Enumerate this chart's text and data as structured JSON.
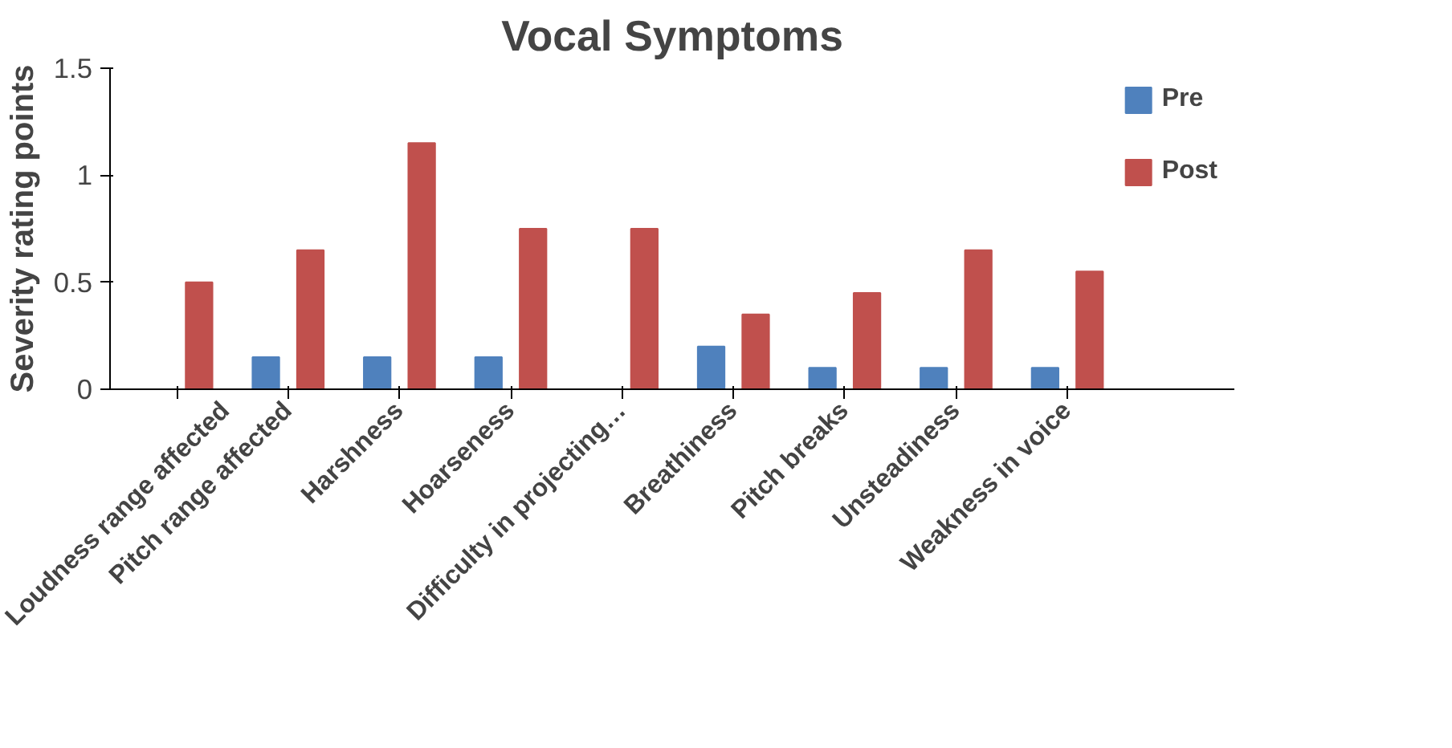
{
  "chart_data": {
    "type": "bar",
    "title": "Vocal Symptoms",
    "ylabel": "Severity rating points",
    "categories": [
      "Loudness range affected",
      "Pitch range affected",
      "Harshness",
      "Hoarseness",
      "Difficulty in projecting…",
      "Breathiness",
      "Pitch breaks",
      "Unsteadiness",
      "Weakness in voice"
    ],
    "series": [
      {
        "name": "Pre",
        "color": "#4f81bd",
        "values": [
          0,
          0.15,
          0.15,
          0.15,
          0,
          0.2,
          0.1,
          0.1,
          0.1
        ]
      },
      {
        "name": "Post",
        "color": "#c0504d",
        "values": [
          0.5,
          0.65,
          1.15,
          0.75,
          0.75,
          0.35,
          0.45,
          0.65,
          0.55
        ]
      }
    ],
    "ylim": [
      0,
      1.5
    ],
    "yticks": [
      0,
      0.5,
      1,
      1.5
    ],
    "grid": false,
    "legend": "right"
  }
}
